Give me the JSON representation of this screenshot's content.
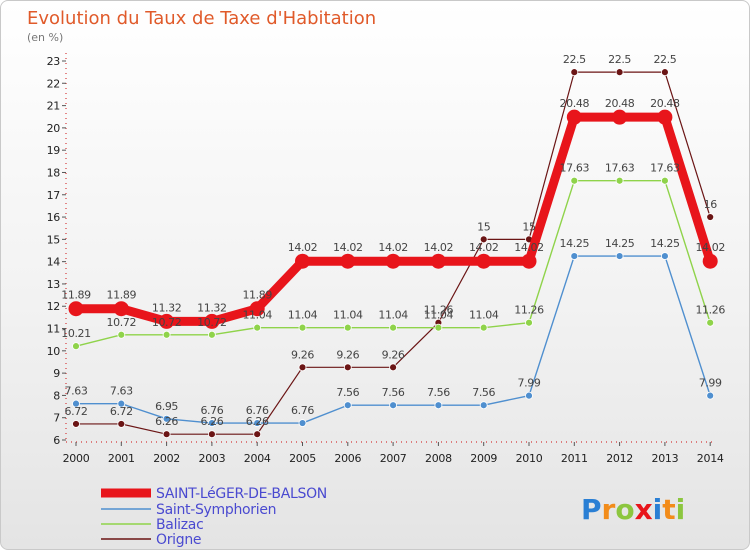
{
  "chart_data": {
    "type": "line",
    "title": "Evolution du Taux de Taxe d'Habitation",
    "subtitle": "(en %)",
    "x": [
      "2000",
      "2001",
      "2002",
      "2003",
      "2004",
      "2005",
      "2006",
      "2007",
      "2008",
      "2009",
      "2010",
      "2011",
      "2012",
      "2013",
      "2014"
    ],
    "ylim": [
      6,
      23
    ],
    "yticks": [
      6,
      7,
      8,
      9,
      10,
      11,
      12,
      13,
      14,
      15,
      16,
      17,
      18,
      19,
      20,
      21,
      22,
      23
    ],
    "grid": false,
    "legend_position": "bottom-left",
    "series": [
      {
        "name": "SAINT-LéGER-DE-BALSON",
        "color": "#e8151b",
        "values": [
          11.89,
          11.89,
          11.32,
          11.32,
          11.89,
          14.02,
          14.02,
          14.02,
          14.02,
          14.02,
          14.02,
          20.48,
          20.48,
          20.48,
          14.02
        ]
      },
      {
        "name": "Saint-Symphorien",
        "color": "#4f8fcf",
        "values": [
          7.63,
          7.63,
          6.95,
          6.76,
          6.76,
          6.76,
          7.56,
          7.56,
          7.56,
          7.56,
          7.99,
          14.25,
          14.25,
          14.25,
          7.99
        ]
      },
      {
        "name": "Balizac",
        "color": "#8fd34a",
        "values": [
          10.21,
          10.72,
          10.72,
          10.72,
          11.04,
          11.04,
          11.04,
          11.04,
          11.04,
          11.04,
          11.26,
          17.63,
          17.63,
          17.63,
          11.26
        ]
      },
      {
        "name": "Origne",
        "color": "#6b1515",
        "values": [
          6.72,
          6.72,
          6.26,
          6.26,
          6.26,
          9.26,
          9.26,
          9.26,
          11.26,
          15,
          15,
          22.5,
          22.5,
          22.5,
          16
        ]
      }
    ]
  },
  "brand": {
    "letters": [
      "P",
      "r",
      "o",
      "x",
      "i",
      "t",
      "i"
    ],
    "colors": [
      "#2a7fd4",
      "#f28c1a",
      "#8cc63f",
      "#e8151b",
      "#2a7fd4",
      "#f28c1a",
      "#8cc63f"
    ]
  }
}
